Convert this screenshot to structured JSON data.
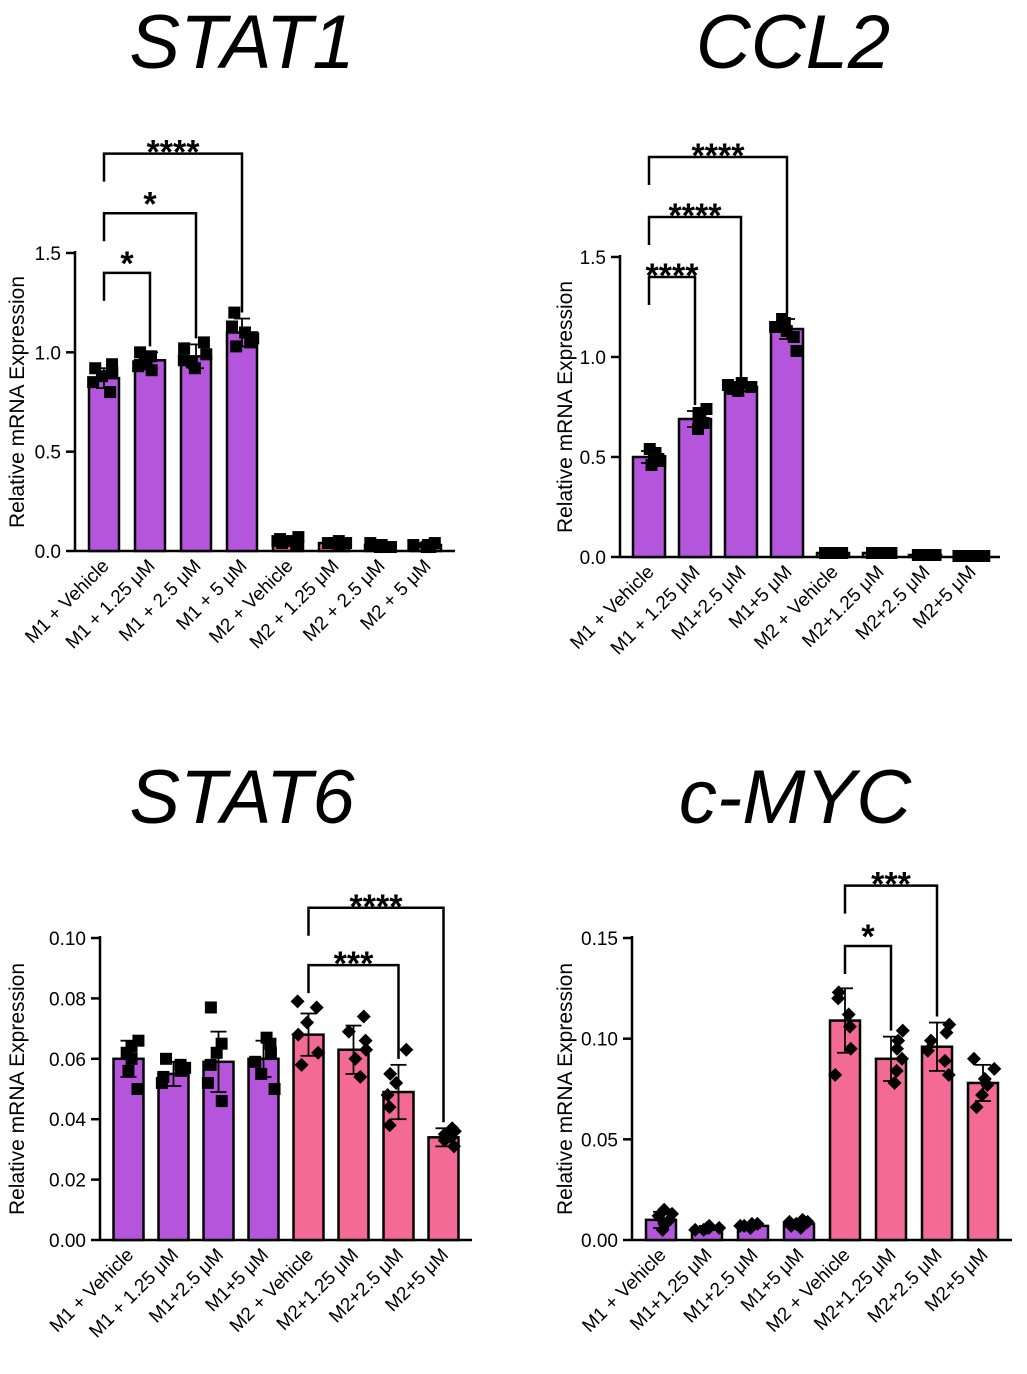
{
  "figure": {
    "background": "#ffffff",
    "colors": {
      "m1": "#b455dc",
      "m2": "#f46a96",
      "ink": "#000000"
    }
  },
  "chart_data": [
    {
      "type": "bar",
      "title": "STAT1",
      "xlabel": "",
      "ylabel": "Relative mRNA Expression",
      "ylim": [
        0,
        1.5
      ],
      "yticks": [
        0.0,
        0.5,
        1.0,
        1.5
      ],
      "yticks_labels": [
        "0.0",
        "0.5",
        "1.0",
        "1.5"
      ],
      "categories": [
        "M1 + Vehicle",
        "M1 + 1.25 μM",
        "M1 + 2.5 μM",
        "M1 + 5 μM",
        "M2  + Vehicle",
        "M2 + 1.25 μM",
        "M2 + 2.5 μM",
        "M2 + 5 μM"
      ],
      "groups": [
        "M1",
        "M1",
        "M1",
        "M1",
        "M2",
        "M2",
        "M2",
        "M2"
      ],
      "values": [
        0.87,
        0.96,
        0.98,
        1.1,
        0.05,
        0.04,
        0.03,
        0.03
      ],
      "errors": [
        0.05,
        0.04,
        0.06,
        0.07,
        0.02,
        0.01,
        0.01,
        0.01
      ],
      "points": [
        [
          0.8,
          0.85,
          0.88,
          0.9,
          0.92,
          0.94
        ],
        [
          0.91,
          0.94,
          0.96,
          0.98,
          1.0,
          0.93
        ],
        [
          0.92,
          0.95,
          0.99,
          1.02,
          1.05,
          0.96
        ],
        [
          1.03,
          1.07,
          1.1,
          1.13,
          1.2,
          1.05
        ],
        [
          0.03,
          0.05,
          0.07,
          0.04,
          0.06,
          0.05
        ],
        [
          0.03,
          0.04,
          0.05,
          0.04,
          0.03,
          0.04
        ],
        [
          0.02,
          0.03,
          0.04,
          0.03,
          0.02,
          0.03
        ],
        [
          0.02,
          0.03,
          0.04,
          0.03,
          0.03,
          0.02
        ]
      ],
      "marker": "square",
      "significance": [
        {
          "from": 0,
          "to": 1,
          "label": "*",
          "level": 1.4
        },
        {
          "from": 0,
          "to": 2,
          "label": "*",
          "level": 1.7
        },
        {
          "from": 0,
          "to": 3,
          "label": "****",
          "level": 2.0
        }
      ]
    },
    {
      "type": "bar",
      "title": "CCL2",
      "xlabel": "",
      "ylabel": "Relative mRNA Expression",
      "ylim": [
        0,
        1.5
      ],
      "yticks": [
        0.0,
        0.5,
        1.0,
        1.5
      ],
      "yticks_labels": [
        "0.0",
        "0.5",
        "1.0",
        "1.5"
      ],
      "categories": [
        "M1 + Vehicle",
        "M1 + 1.25 μM",
        "M1+2.5 μM",
        "M1+5 μM",
        "M2 + Vehicle",
        "M2+1.25 μM",
        "M2+2.5 μM",
        "M2+5 μM"
      ],
      "groups": [
        "M1",
        "M1",
        "M1",
        "M1",
        "M2",
        "M2",
        "M2",
        "M2"
      ],
      "values": [
        0.5,
        0.69,
        0.85,
        1.14,
        0.02,
        0.02,
        0.01,
        0.005
      ],
      "errors": [
        0.03,
        0.04,
        0.02,
        0.05,
        0.003,
        0.003,
        0.002,
        0.002
      ],
      "points": [
        [
          0.46,
          0.48,
          0.5,
          0.52,
          0.54,
          0.49
        ],
        [
          0.64,
          0.67,
          0.7,
          0.72,
          0.74,
          0.68
        ],
        [
          0.83,
          0.84,
          0.85,
          0.86,
          0.87,
          0.85
        ],
        [
          1.03,
          1.1,
          1.15,
          1.17,
          1.19,
          1.13
        ],
        [
          0.02,
          0.02,
          0.02,
          0.02,
          0.02,
          0.02
        ],
        [
          0.02,
          0.02,
          0.02,
          0.02,
          0.02,
          0.02
        ],
        [
          0.01,
          0.01,
          0.01,
          0.01,
          0.01,
          0.01
        ],
        [
          0.005,
          0.005,
          0.005,
          0.005,
          0.005,
          0.005
        ]
      ],
      "marker": "square",
      "significance": [
        {
          "from": 0,
          "to": 1,
          "label": "****",
          "level": 1.4
        },
        {
          "from": 0,
          "to": 2,
          "label": "****",
          "level": 1.7
        },
        {
          "from": 0,
          "to": 3,
          "label": "****",
          "level": 2.0
        }
      ]
    },
    {
      "type": "bar",
      "title": "STAT6",
      "xlabel": "",
      "ylabel": "Relative mRNA Expression",
      "ylim": [
        0,
        0.1
      ],
      "yticks": [
        0.0,
        0.02,
        0.04,
        0.06,
        0.08,
        0.1
      ],
      "yticks_labels": [
        "0.00",
        "0.02",
        "0.04",
        "0.06",
        "0.08",
        "0.10"
      ],
      "categories": [
        "M1 + Vehicle",
        "M1 + 1.25 μM",
        "M1+2.5 μM",
        "M1+5 μM",
        "M2 + Vehicle",
        "M2+1.25 μM",
        "M2+2.5 μM",
        "M2+5 μM"
      ],
      "groups": [
        "M1",
        "M1",
        "M1",
        "M1",
        "M2",
        "M2",
        "M2",
        "M2"
      ],
      "values": [
        0.06,
        0.055,
        0.059,
        0.06,
        0.068,
        0.063,
        0.049,
        0.034
      ],
      "errors": [
        0.006,
        0.004,
        0.01,
        0.006,
        0.007,
        0.008,
        0.009,
        0.003
      ],
      "points": [
        [
          0.05,
          0.056,
          0.06,
          0.062,
          0.064,
          0.066
        ],
        [
          0.052,
          0.054,
          0.056,
          0.057,
          0.058,
          0.06
        ],
        [
          0.046,
          0.052,
          0.058,
          0.062,
          0.065,
          0.077
        ],
        [
          0.05,
          0.055,
          0.059,
          0.062,
          0.065,
          0.067
        ],
        [
          0.058,
          0.062,
          0.068,
          0.072,
          0.077,
          0.079
        ],
        [
          0.054,
          0.06,
          0.063,
          0.066,
          0.069,
          0.074
        ],
        [
          0.038,
          0.044,
          0.048,
          0.052,
          0.055,
          0.063
        ],
        [
          0.031,
          0.033,
          0.034,
          0.035,
          0.036,
          0.037
        ]
      ],
      "markers_per_bar": [
        "square",
        "square",
        "square",
        "square",
        "diamond",
        "diamond",
        "diamond",
        "diamond"
      ],
      "significance": [
        {
          "from": 4,
          "to": 6,
          "label": "***",
          "level": 0.091
        },
        {
          "from": 4,
          "to": 7,
          "label": "****",
          "level": 0.11
        }
      ]
    },
    {
      "type": "bar",
      "title": "c-MYC",
      "xlabel": "",
      "ylabel": "Relative mRNA Expression",
      "ylim": [
        0,
        0.15
      ],
      "yticks": [
        0.0,
        0.05,
        0.1,
        0.15
      ],
      "yticks_labels": [
        "0.00",
        "0.05",
        "0.10",
        "0.15"
      ],
      "categories": [
        "M1 + Vehicle",
        "M1+1.25 μM",
        "M1+2.5 μM",
        "M1+5 μM",
        "M2 + Vehicle",
        "M2+1.25 μM",
        "M2+2.5 μM",
        "M2+5 μM"
      ],
      "groups": [
        "M1",
        "M1",
        "M1",
        "M1",
        "M2",
        "M2",
        "M2",
        "M2"
      ],
      "values": [
        0.01,
        0.006,
        0.007,
        0.008,
        0.109,
        0.09,
        0.096,
        0.078
      ],
      "errors": [
        0.004,
        0.001,
        0.001,
        0.002,
        0.016,
        0.011,
        0.012,
        0.009
      ],
      "points": [
        [
          0.005,
          0.008,
          0.01,
          0.012,
          0.013,
          0.015
        ],
        [
          0.005,
          0.005,
          0.006,
          0.006,
          0.007,
          0.006
        ],
        [
          0.006,
          0.006,
          0.007,
          0.007,
          0.008,
          0.008
        ],
        [
          0.006,
          0.007,
          0.008,
          0.009,
          0.01,
          0.009
        ],
        [
          0.082,
          0.095,
          0.106,
          0.112,
          0.12,
          0.123
        ],
        [
          0.078,
          0.084,
          0.09,
          0.095,
          0.099,
          0.104
        ],
        [
          0.082,
          0.089,
          0.094,
          0.099,
          0.103,
          0.107
        ],
        [
          0.066,
          0.072,
          0.077,
          0.08,
          0.085,
          0.09
        ]
      ],
      "marker": "diamond",
      "significance": [
        {
          "from": 4,
          "to": 5,
          "label": "*",
          "level": 0.146
        },
        {
          "from": 4,
          "to": 6,
          "label": "***",
          "level": 0.176
        }
      ]
    }
  ]
}
